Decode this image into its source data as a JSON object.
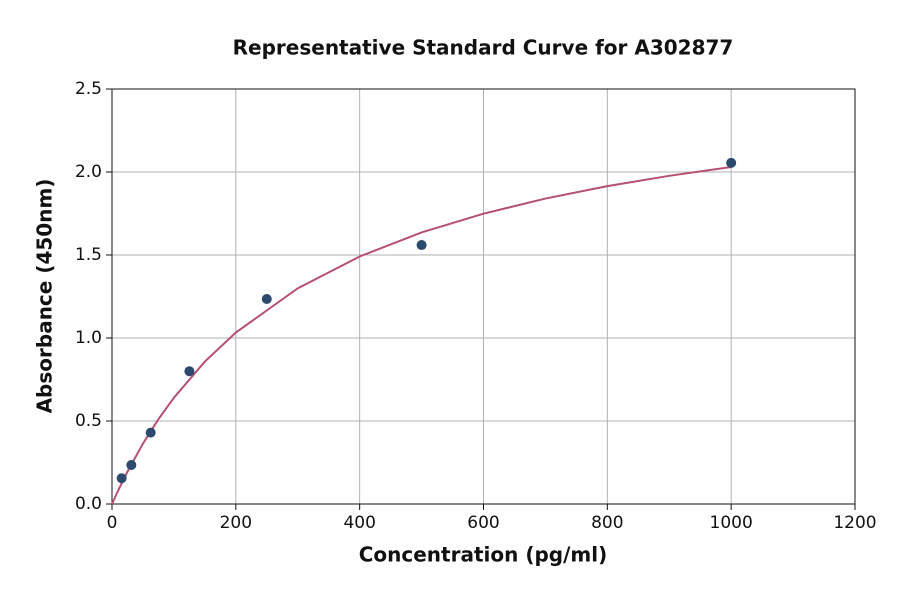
{
  "chart_data": {
    "type": "scatter",
    "title": "Representative Standard Curve for A302877",
    "x_label": "Concentration (pg/ml)",
    "y_label": "Absorbance (450nm)",
    "xlim": [
      0,
      1200
    ],
    "xticks": [
      0,
      200,
      400,
      600,
      800,
      1000,
      1200
    ],
    "ylim": [
      0,
      2.5
    ],
    "yticks": [
      {
        "value": 0,
        "label": "0.0"
      },
      {
        "value": 0.5,
        "label": "0.5"
      },
      {
        "value": 1,
        "label": "1.0"
      },
      {
        "value": 1.5,
        "label": "1.5"
      },
      {
        "value": 2,
        "label": "2.0"
      },
      {
        "value": 2.5,
        "label": "2.5"
      }
    ],
    "grid": true,
    "series": [
      {
        "mode": "line",
        "color": "#b5506e",
        "x": [
          0,
          10,
          25,
          50,
          75,
          100,
          150,
          200,
          300,
          400,
          500,
          600,
          700,
          800,
          900,
          1000
        ],
        "values": [
          0,
          0.082,
          0.195,
          0.364,
          0.511,
          0.64,
          0.858,
          1.033,
          1.299,
          1.491,
          1.636,
          1.749,
          1.84,
          1.915,
          1.977,
          2.03
        ]
      },
      {
        "mode": "markers",
        "color": "#2b4a6e",
        "x": [
          15.6,
          31.25,
          62.5,
          125,
          250,
          500,
          1000
        ],
        "values": [
          0.155,
          0.235,
          0.43,
          0.8,
          1.235,
          1.56,
          2.055
        ]
      }
    ]
  }
}
